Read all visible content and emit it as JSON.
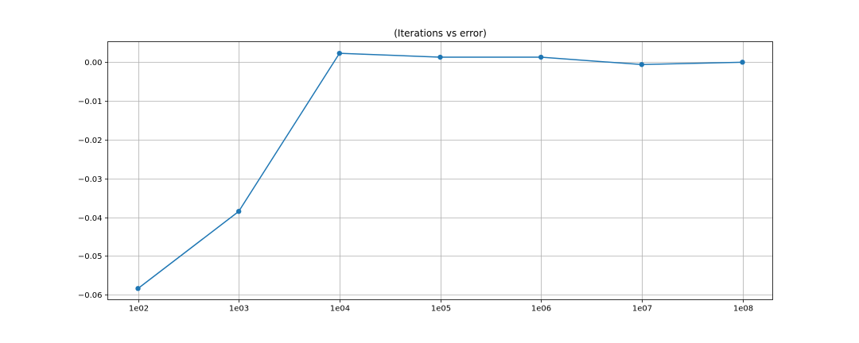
{
  "chart_data": {
    "type": "line",
    "title": "(Iterations vs error)",
    "xlabel": "",
    "ylabel": "",
    "categories": [
      "1e02",
      "1e03",
      "1e04",
      "1e05",
      "1e06",
      "1e07",
      "1e08"
    ],
    "series": [
      {
        "values": [
          -0.0584,
          -0.0385,
          0.0023,
          0.0013,
          0.0013,
          -0.0006,
          0.0
        ],
        "color": "#1f77b4",
        "marker": "circle"
      }
    ],
    "yticks": [
      0.0,
      -0.01,
      -0.02,
      -0.03,
      -0.04,
      -0.05,
      -0.06
    ],
    "ytick_labels": [
      "0.00",
      "−0.01",
      "−0.02",
      "−0.03",
      "−0.04",
      "−0.05",
      "−0.06"
    ],
    "ylim": [
      -0.0613,
      0.0053
    ],
    "grid": true,
    "legend": "none"
  }
}
